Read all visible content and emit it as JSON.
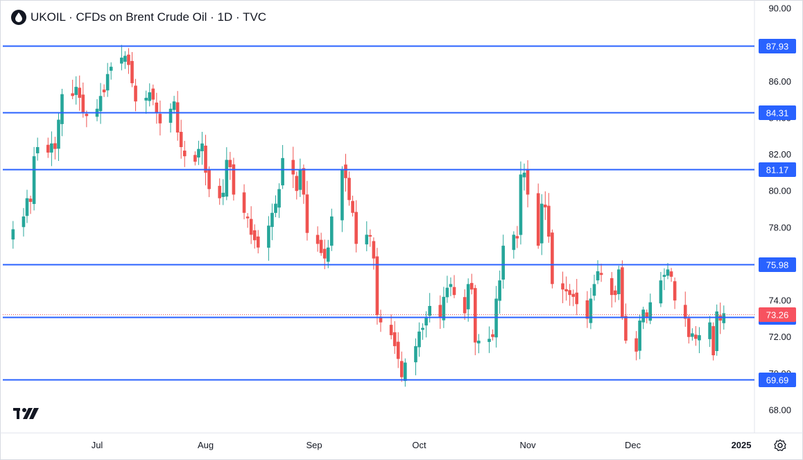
{
  "header": {
    "title": "UKOIL · CFDs on Brent Crude Oil · 1D · TVC"
  },
  "branding": {
    "logo_text": "17"
  },
  "icons": {
    "symbol": "oil-drop-icon",
    "settings": "gear-icon",
    "logo": "tradingview-logo-icon"
  },
  "colors": {
    "up": "#26a69a",
    "down": "#ef5350",
    "level_line": "#2962ff",
    "price_label": "#f7525f",
    "axis_text": "#131722",
    "background": "#ffffff"
  },
  "chart_data": {
    "type": "candlestick",
    "title": "UKOIL · CFDs on Brent Crude Oil · 1D · TVC",
    "x_axis": {
      "ticks": [
        {
          "label": "Jul",
          "date": "2024-07-01"
        },
        {
          "label": "Aug",
          "date": "2024-08-01"
        },
        {
          "label": "Sep",
          "date": "2024-09-01"
        },
        {
          "label": "Oct",
          "date": "2024-10-01"
        },
        {
          "label": "Nov",
          "date": "2024-11-01"
        },
        {
          "label": "Dec",
          "date": "2024-12-01"
        },
        {
          "label": "2025",
          "date": "2025-01-01"
        }
      ]
    },
    "y_axis": {
      "range": [
        67.0,
        90.4
      ],
      "ticks": [
        "68.00",
        "70.00",
        "72.00",
        "74.00",
        "76.00",
        "78.00",
        "80.00",
        "82.00",
        "84.00",
        "86.00",
        "88.00",
        "90.00"
      ],
      "tick_values": [
        68,
        70,
        72,
        74,
        76,
        78,
        80,
        82,
        84,
        86,
        88,
        90
      ]
    },
    "horizontal_levels": [
      {
        "value": 87.93,
        "label": "87.93"
      },
      {
        "value": 84.31,
        "label": "84.31"
      },
      {
        "value": 81.17,
        "label": "81.17"
      },
      {
        "value": 75.98,
        "label": "75.98"
      },
      {
        "value": 73.09,
        "label": "73.09"
      },
      {
        "value": 69.69,
        "label": "69.69"
      }
    ],
    "last_price": {
      "value": 73.26,
      "label": "73.26"
    },
    "date_range": [
      "2024-06-07",
      "2024-12-27"
    ],
    "closes": [
      77.9,
      78.6,
      79.6,
      79.4,
      81.9,
      82.4,
      82.1,
      82.6,
      82.3,
      83.9,
      85.3,
      85.2,
      85.7,
      85.1,
      84.3,
      84.1,
      84.5,
      85.2,
      85.4,
      86.4,
      86.8,
      87.3,
      87.4,
      86.9,
      85.9,
      84.9,
      85.1,
      85.4,
      85.0,
      84.3,
      83.7,
      84.5,
      84.9,
      83.2,
      82.4,
      81.9,
      81.6,
      82.3,
      82.6,
      81.0,
      80.1,
      79.6,
      79.9,
      81.7,
      81.3,
      79.8,
      78.8,
      78.5,
      77.6,
      77.3,
      76.9,
      78.1,
      78.8,
      79.3,
      80.1,
      81.8,
      80.9,
      80.0,
      81.2,
      79.8,
      77.7,
      77.1,
      76.6,
      76.3,
      76.9,
      78.6,
      81.2,
      80.7,
      79.5,
      78.8,
      77.1,
      77.6,
      77.5,
      76.3,
      73.2,
      72.8,
      72.1,
      71.5,
      70.8,
      69.8,
      70.6,
      71.5,
      72.3,
      72.5,
      73.1,
      73.7,
      73.1,
      74.2,
      74.7,
      74.9,
      74.3,
      73.3,
      74.9,
      74.6,
      71.7,
      71.8,
      71.9,
      72.0,
      74.1,
      75.1,
      77.0,
      77.6,
      77.4,
      80.9,
      81.0,
      79.8,
      77.0,
      79.3,
      79.1,
      77.5,
      74.9,
      74.6,
      74.5,
      74.3,
      74.2,
      73.8,
      73.0,
      74.1,
      74.9,
      75.6,
      75.4,
      74.3,
      74.3,
      75.7,
      73.1,
      71.8,
      71.2,
      72.9,
      73.5,
      73.1,
      73.9,
      75.1,
      75.4,
      75.7,
      75.3,
      74.0,
      73.0,
      72.0,
      72.2,
      71.9,
      72.1,
      72.8,
      71.0,
      73.4,
      72.9,
      73.3,
      73.5,
      74.3,
      75.2,
      73.0,
      72.5,
      72.8,
      72.9,
      72.6,
      72.1,
      71.9,
      72.3,
      74.0,
      72.9,
      72.9,
      71.5,
      71.3,
      72.0,
      72.3,
      73.5,
      74.4,
      74.3,
      73.6,
      73.0,
      72.6,
      72.9,
      72.8,
      72.9,
      73.0,
      73.3,
      73.8,
      73.3
    ]
  }
}
